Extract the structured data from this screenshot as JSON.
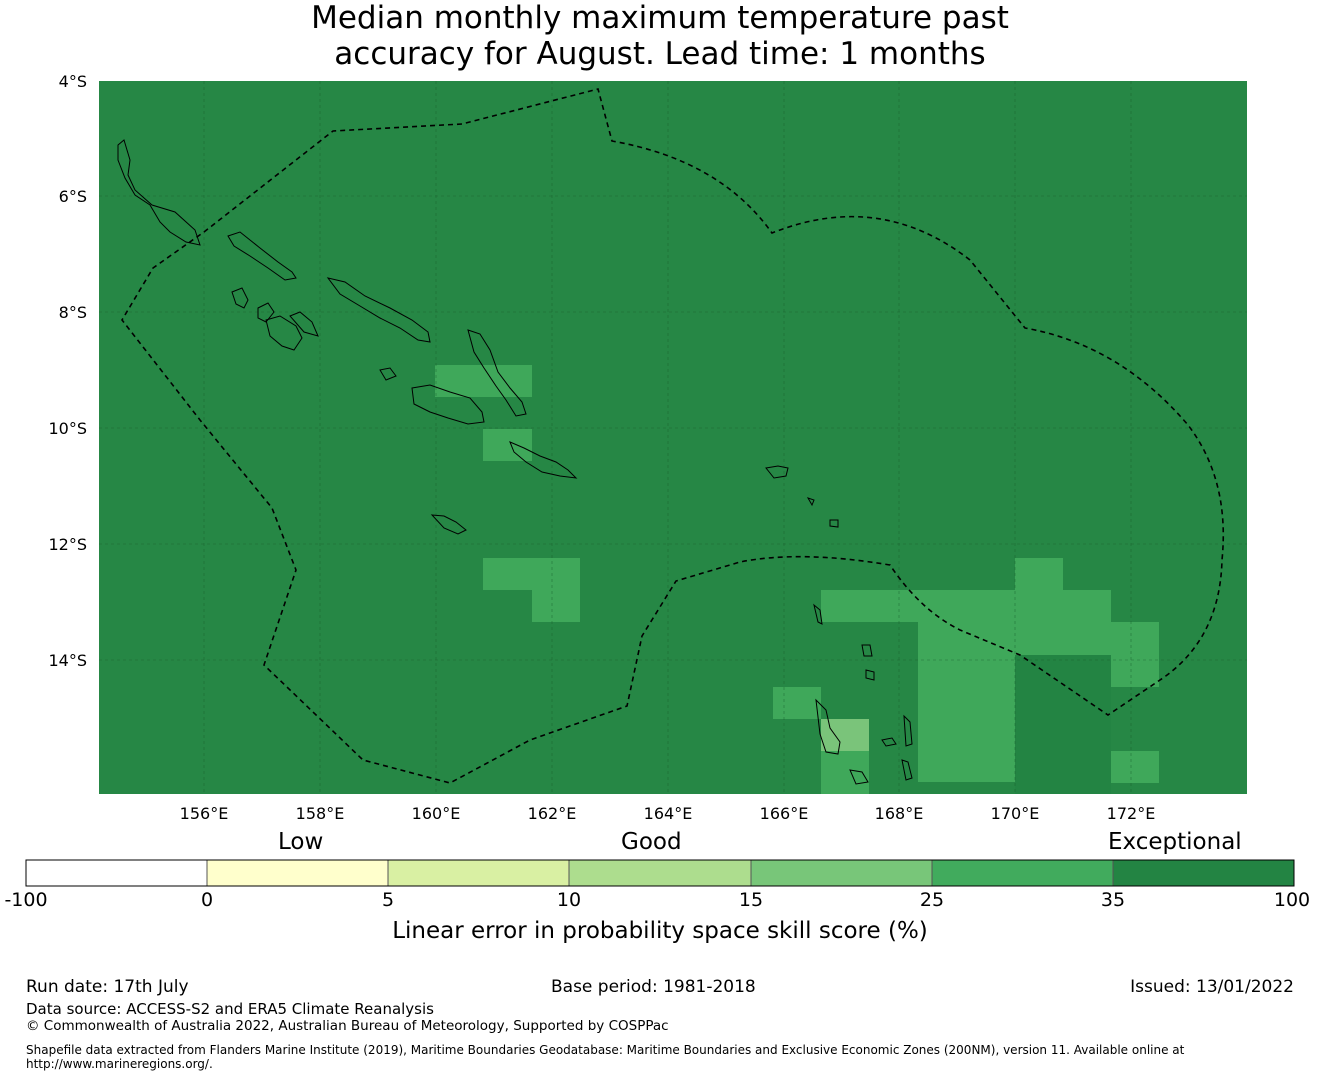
{
  "title": {
    "line1": "Median monthly maximum temperature past",
    "line2": "accuracy for August. Lead time: 1 months"
  },
  "map": {
    "lat_labels": [
      "4°S",
      "6°S",
      "8°S",
      "10°S",
      "12°S",
      "14°S"
    ],
    "lon_labels": [
      "156°E",
      "158°E",
      "160°E",
      "162°E",
      "164°E",
      "166°E",
      "168°E",
      "170°E",
      "172°E"
    ],
    "base_color": "#268745",
    "category_colors": {
      "25-35": "#3fa85a",
      "15-25": "#7ac47a",
      "35-100": "#238443"
    }
  },
  "colorbar": {
    "categories": {
      "low": "Low",
      "good": "Good",
      "exceptional": "Exceptional"
    },
    "ticks": [
      "-100",
      "0",
      "5",
      "10",
      "15",
      "25",
      "35",
      "100"
    ],
    "colors": [
      "#ffffff",
      "#ffffcc",
      "#d9f0a3",
      "#addd8e",
      "#78c679",
      "#41ab5d",
      "#238443"
    ],
    "label": "Linear error in probability space skill score (%)"
  },
  "footer": {
    "run_date": "Run date: 17th July",
    "base_period": "Base period: 1981-2018",
    "issued": "Issued: 13/01/2022",
    "data_source": "Data source: ACCESS-S2 and ERA5 Climate Reanalysis",
    "copyright": "© Commonwealth of Australia 2022, Australian Bureau of Meteorology, Supported by COSPPac",
    "shapefile_line1": "Shapefile data extracted from Flanders Marine Institute (2019), Maritime Boundaries Geodatabase: Maritime Boundaries and Exclusive Economic Zones (200NM), version 11. Available online at",
    "shapefile_line2": "http://www.marineregions.org/."
  }
}
